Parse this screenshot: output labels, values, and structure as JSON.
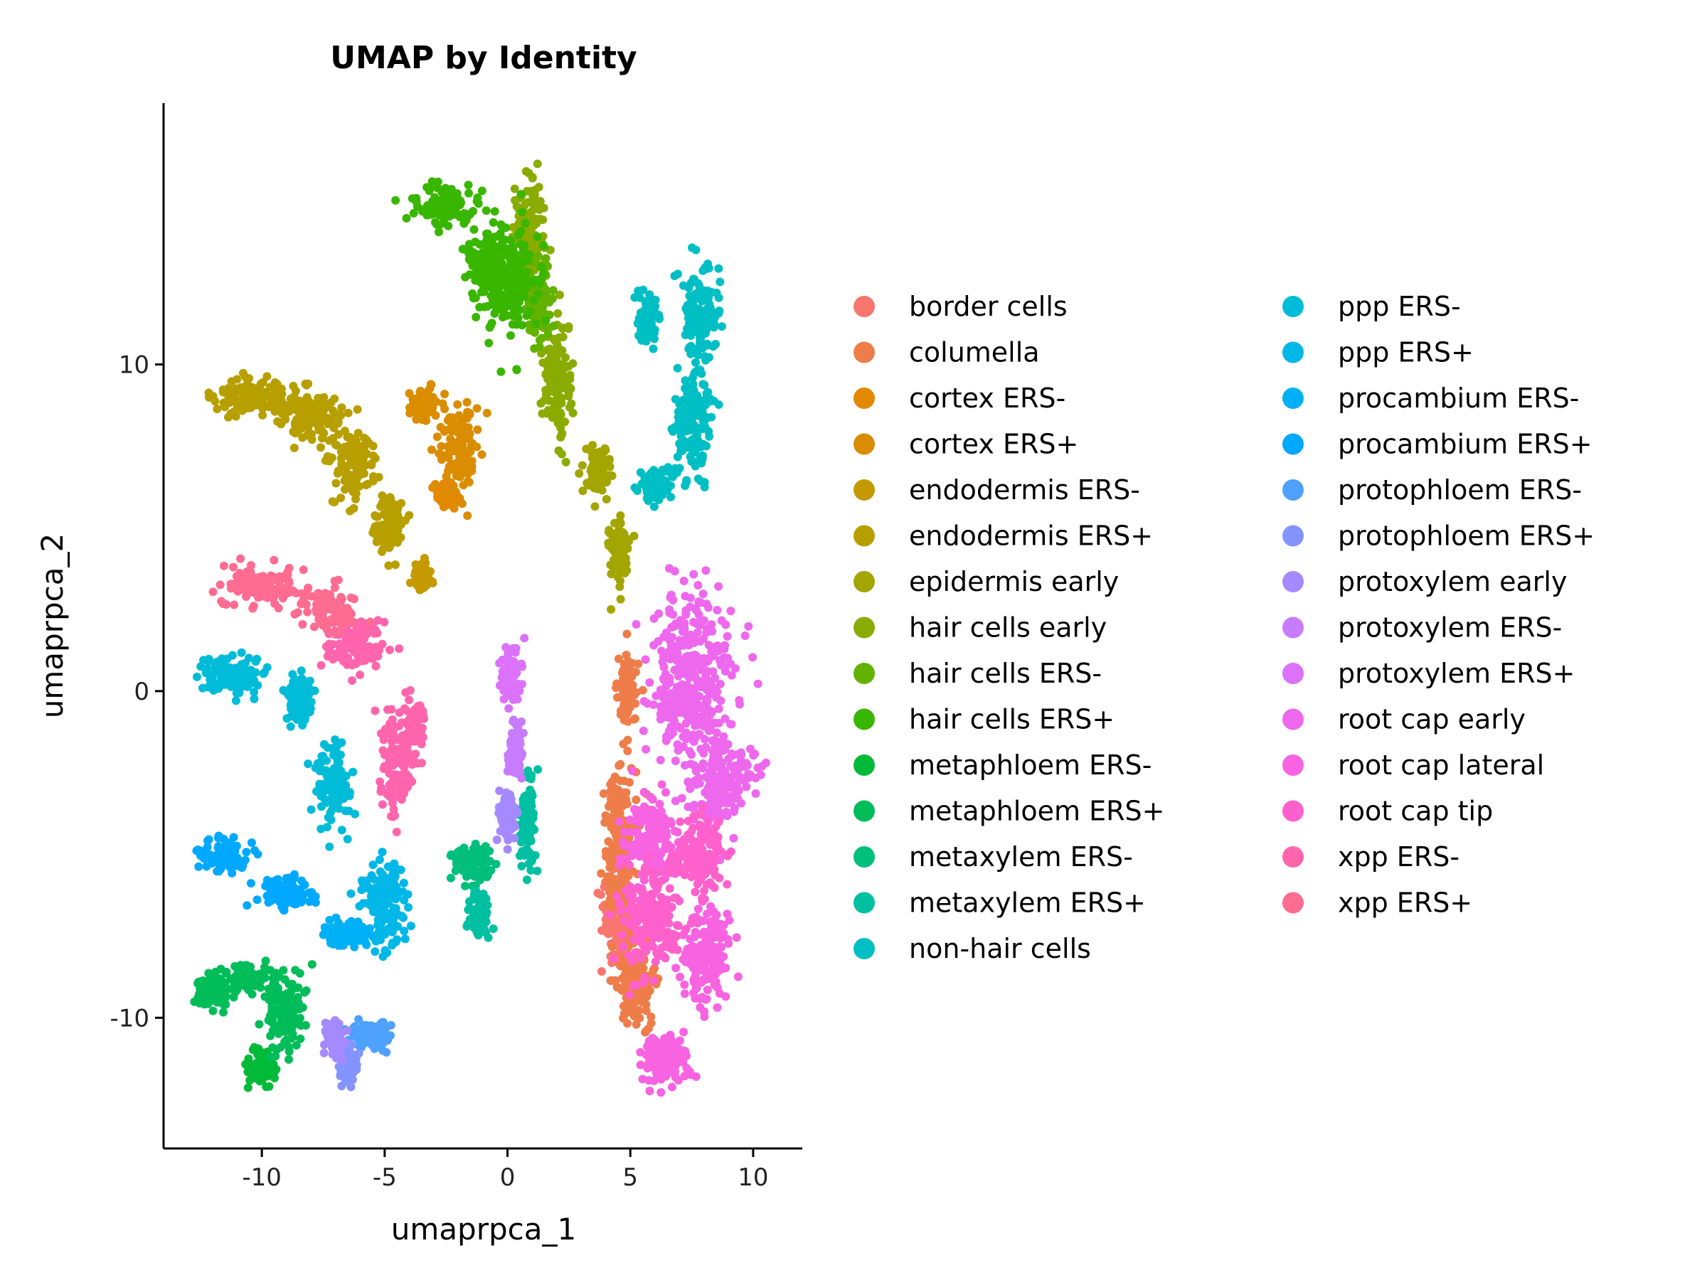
{
  "chart_data": {
    "type": "scatter",
    "title": "UMAP by Identity",
    "xlabel": "umaprpca_1",
    "ylabel": "umaprpca_2",
    "xlim": [
      -14.0,
      12.0
    ],
    "ylim": [
      -14.0,
      18.0
    ],
    "x_ticks": [
      -10,
      -5,
      0,
      5,
      10
    ],
    "x_tick_labels": [
      "-10",
      "-5",
      "0",
      "5",
      "10"
    ],
    "y_ticks": [
      -10,
      0,
      10
    ],
    "y_tick_labels": [
      "-10",
      "0",
      "10"
    ],
    "grid": false,
    "legend_position": "right",
    "legend_columns": 2,
    "series": [
      {
        "name": "border cells",
        "color": "#F8766D",
        "clusters": [
          [
            4.5,
            -7.0,
            0.7,
            1.8
          ]
        ]
      },
      {
        "name": "columella",
        "color": "#EE7D4A",
        "clusters": [
          [
            4.6,
            -4.5,
            0.6,
            2.5
          ],
          [
            4.9,
            0.0,
            0.4,
            1.2
          ],
          [
            5.2,
            -9.0,
            0.8,
            1.3
          ]
        ]
      },
      {
        "name": "cortex ERS-",
        "color": "#E38900",
        "clusters": [
          [
            -2.5,
            6.0,
            0.5,
            0.4
          ]
        ]
      },
      {
        "name": "cortex ERS+",
        "color": "#DA8D00",
        "clusters": [
          [
            -2.0,
            7.5,
            0.8,
            1.3
          ],
          [
            -3.5,
            8.8,
            0.5,
            0.5
          ]
        ]
      },
      {
        "name": "endodermis ERS-",
        "color": "#C49A00",
        "clusters": [
          [
            -3.5,
            3.5,
            0.4,
            0.4
          ]
        ]
      },
      {
        "name": "endodermis ERS+",
        "color": "#B79F00",
        "clusters": [
          [
            -10.5,
            9.0,
            1.5,
            0.5
          ],
          [
            -8.0,
            8.5,
            1.3,
            0.8
          ],
          [
            -6.3,
            7.0,
            0.9,
            1.0
          ],
          [
            -4.8,
            5.0,
            0.6,
            1.0
          ]
        ]
      },
      {
        "name": "epidermis early",
        "color": "#A3A500",
        "clusters": [
          [
            4.5,
            4.2,
            0.4,
            1.0
          ],
          [
            3.7,
            6.8,
            0.5,
            0.8
          ]
        ]
      },
      {
        "name": "hair cells early",
        "color": "#8AAB00",
        "clusters": [
          [
            2.0,
            9.5,
            0.6,
            1.8
          ],
          [
            0.8,
            14.0,
            0.6,
            1.8
          ]
        ]
      },
      {
        "name": "hair cells ERS-",
        "color": "#63B200",
        "clusters": [
          [
            1.3,
            12.0,
            0.5,
            1.2
          ]
        ]
      },
      {
        "name": "hair cells ERS+",
        "color": "#39B600",
        "clusters": [
          [
            -2.5,
            14.8,
            1.3,
            0.6
          ],
          [
            0.0,
            12.5,
            1.1,
            1.8
          ],
          [
            -0.8,
            13.0,
            0.8,
            1.0
          ]
        ]
      },
      {
        "name": "metaphloem ERS-",
        "color": "#00BA38",
        "clusters": [
          [
            -10.0,
            -11.5,
            0.6,
            0.6
          ]
        ]
      },
      {
        "name": "metaphloem ERS+",
        "color": "#00BC59",
        "clusters": [
          [
            -12.0,
            -9.2,
            0.8,
            0.5
          ],
          [
            -9.0,
            -9.8,
            0.8,
            1.2
          ],
          [
            -10.5,
            -8.8,
            0.9,
            0.4
          ]
        ]
      },
      {
        "name": "metaxylem ERS-",
        "color": "#00BF7D",
        "clusters": [
          [
            -1.5,
            -5.3,
            0.7,
            0.6
          ]
        ]
      },
      {
        "name": "metaxylem ERS+",
        "color": "#00C0A1",
        "clusters": [
          [
            0.8,
            -4.0,
            0.3,
            1.6
          ],
          [
            -1.2,
            -6.8,
            0.4,
            0.8
          ]
        ]
      },
      {
        "name": "non-hair cells",
        "color": "#00BFC4",
        "clusters": [
          [
            7.9,
            11.5,
            0.7,
            1.5
          ],
          [
            7.5,
            8.0,
            0.8,
            1.5
          ],
          [
            6.0,
            6.3,
            0.6,
            0.5
          ],
          [
            5.7,
            11.5,
            0.4,
            0.8
          ]
        ]
      },
      {
        "name": "ppp ERS-",
        "color": "#00BCD8",
        "clusters": [
          [
            -11.3,
            0.5,
            1.3,
            0.6
          ],
          [
            -7.0,
            -2.8,
            0.7,
            1.2
          ],
          [
            -8.5,
            -0.3,
            0.6,
            0.8
          ]
        ]
      },
      {
        "name": "ppp ERS+",
        "color": "#00B7E8",
        "clusters": [
          [
            -5.0,
            -6.5,
            0.9,
            1.3
          ]
        ]
      },
      {
        "name": "procambium ERS-",
        "color": "#00B0F6",
        "clusters": [
          [
            -6.5,
            -7.4,
            1.0,
            0.4
          ]
        ]
      },
      {
        "name": "procambium ERS+",
        "color": "#00A8FF",
        "clusters": [
          [
            -11.5,
            -5.0,
            1.0,
            0.5
          ],
          [
            -9.0,
            -6.2,
            1.0,
            0.5
          ]
        ]
      },
      {
        "name": "protophloem ERS-",
        "color": "#4EA1FF",
        "clusters": [
          [
            -5.5,
            -10.5,
            0.8,
            0.4
          ]
        ]
      },
      {
        "name": "protophloem ERS+",
        "color": "#8494FF",
        "clusters": [
          [
            -6.5,
            -11.5,
            0.4,
            0.6
          ]
        ]
      },
      {
        "name": "protoxylem early",
        "color": "#A58AFF",
        "clusters": [
          [
            -7.0,
            -10.7,
            0.4,
            0.6
          ],
          [
            0.0,
            -3.8,
            0.3,
            0.8
          ]
        ]
      },
      {
        "name": "protoxylem ERS-",
        "color": "#C77CFF",
        "clusters": [
          [
            0.3,
            -1.8,
            0.3,
            1.0
          ]
        ]
      },
      {
        "name": "protoxylem ERS+",
        "color": "#DC71FA",
        "clusters": [
          [
            0.1,
            0.5,
            0.4,
            0.8
          ]
        ]
      },
      {
        "name": "root cap early",
        "color": "#ED68ED",
        "clusters": [
          [
            7.5,
            0.5,
            1.6,
            2.5
          ],
          [
            8.7,
            -2.8,
            1.3,
            1.5
          ]
        ]
      },
      {
        "name": "root cap lateral",
        "color": "#F763E0",
        "clusters": [
          [
            5.8,
            -4.5,
            1.1,
            1.3
          ],
          [
            6.3,
            -11.3,
            1.0,
            0.8
          ],
          [
            8.0,
            -8.0,
            1.0,
            1.5
          ]
        ]
      },
      {
        "name": "root cap tip",
        "color": "#FF61CC",
        "clusters": [
          [
            5.8,
            -7.0,
            1.2,
            1.5
          ],
          [
            7.8,
            -5.0,
            1.0,
            1.2
          ]
        ]
      },
      {
        "name": "xpp ERS-",
        "color": "#FF65AC",
        "clusters": [
          [
            -6.2,
            1.5,
            1.2,
            0.7
          ],
          [
            -4.5,
            -2.2,
            0.6,
            1.6
          ],
          [
            -3.8,
            -1.0,
            0.4,
            0.8
          ]
        ]
      },
      {
        "name": "xpp ERS+",
        "color": "#FF6C91",
        "clusters": [
          [
            -10.0,
            3.2,
            1.7,
            0.6
          ],
          [
            -7.2,
            2.5,
            1.0,
            0.6
          ]
        ]
      }
    ]
  }
}
